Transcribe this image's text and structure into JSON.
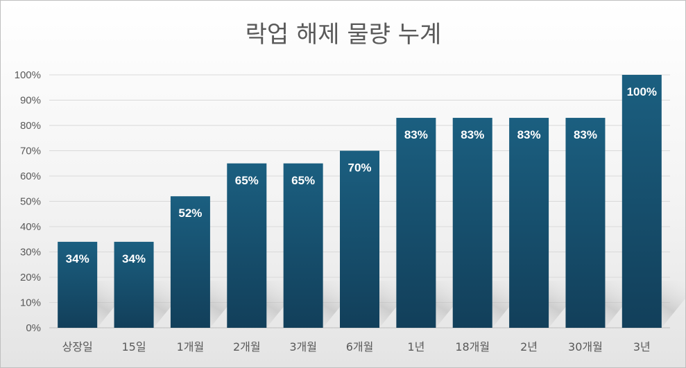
{
  "chart_data": {
    "type": "bar",
    "title": "락업 해제 물량 누계",
    "xlabel": "",
    "ylabel": "",
    "categories": [
      "상장일",
      "15일",
      "1개월",
      "2개월",
      "3개월",
      "6개월",
      "1년",
      "18개월",
      "2년",
      "30개월",
      "3년"
    ],
    "values": [
      34,
      34,
      52,
      65,
      65,
      70,
      83,
      83,
      83,
      83,
      100
    ],
    "data_labels": [
      "34%",
      "34%",
      "52%",
      "65%",
      "65%",
      "70%",
      "83%",
      "83%",
      "83%",
      "83%",
      "100%"
    ],
    "ylim": [
      0,
      100
    ],
    "y_ticks": [
      "0%",
      "10%",
      "20%",
      "30%",
      "40%",
      "50%",
      "60%",
      "70%",
      "80%",
      "90%",
      "100%"
    ],
    "grid": true,
    "legend": "none",
    "colors": {
      "bar_top": "#1b5f80",
      "bar_bottom": "#123f5a",
      "grid": "#d9d9d9",
      "text": "#595959",
      "label": "#ffffff"
    }
  }
}
